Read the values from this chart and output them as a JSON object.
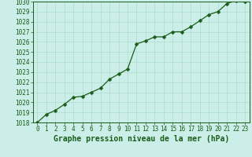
{
  "x": [
    0,
    1,
    2,
    3,
    4,
    5,
    6,
    7,
    8,
    9,
    10,
    11,
    12,
    13,
    14,
    15,
    16,
    17,
    18,
    19,
    20,
    21,
    22,
    23
  ],
  "y": [
    1018.0,
    1018.8,
    1019.2,
    1019.8,
    1020.5,
    1020.6,
    1021.0,
    1021.4,
    1022.3,
    1022.8,
    1023.3,
    1025.8,
    1026.1,
    1026.5,
    1026.5,
    1027.0,
    1027.0,
    1027.5,
    1028.1,
    1028.7,
    1029.0,
    1029.8,
    1030.1,
    1030.0
  ],
  "line_color": "#1a5c1a",
  "marker": "D",
  "marker_size": 2.5,
  "bg_color": "#cceee8",
  "grid_color": "#aaddcc",
  "text_color": "#1a5c1a",
  "xlabel": "Graphe pression niveau de la mer (hPa)",
  "ylim": [
    1018,
    1030
  ],
  "xlim": [
    -0.5,
    23.5
  ],
  "yticks": [
    1018,
    1019,
    1020,
    1021,
    1022,
    1023,
    1024,
    1025,
    1026,
    1027,
    1028,
    1029,
    1030
  ],
  "xticks": [
    0,
    1,
    2,
    3,
    4,
    5,
    6,
    7,
    8,
    9,
    10,
    11,
    12,
    13,
    14,
    15,
    16,
    17,
    18,
    19,
    20,
    21,
    22,
    23
  ],
  "xlabel_fontsize": 7,
  "tick_fontsize": 5.5,
  "line_width": 0.9
}
